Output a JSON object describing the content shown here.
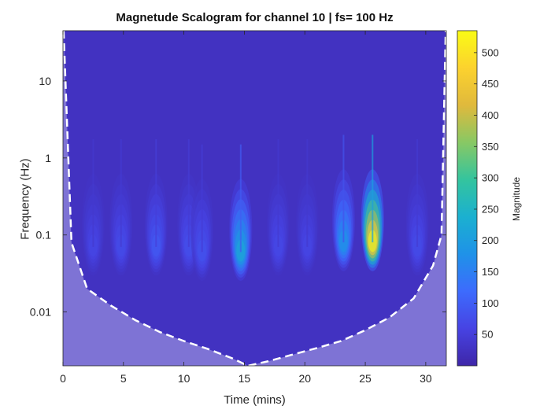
{
  "chart_data": {
    "type": "heatmap",
    "title": "Magnetude Scalogram for channel 10 | fs= 100 Hz",
    "xlabel": "Time (mins)",
    "ylabel": "Frequency (Hz)",
    "colorbar_label": "Magnitude",
    "xlim": [
      0,
      31.7
    ],
    "ylim": [
      0.002,
      45
    ],
    "yscale": "log",
    "x_ticks": [
      0,
      5,
      10,
      15,
      20,
      25,
      30
    ],
    "x_tick_labels": [
      "0",
      "5",
      "10",
      "15",
      "20",
      "25",
      "30"
    ],
    "y_ticks": [
      0.01,
      0.1,
      1,
      10
    ],
    "y_tick_labels": [
      "0.01",
      "0.1",
      "1",
      "10"
    ],
    "colorbar_range": [
      0,
      535
    ],
    "colorbar_ticks": [
      50,
      100,
      150,
      200,
      250,
      300,
      350,
      400,
      450,
      500
    ],
    "colorbar_tick_labels": [
      "50",
      "100",
      "150",
      "200",
      "250",
      "300",
      "350",
      "400",
      "450",
      "500"
    ],
    "colormap": [
      "#3e26a8",
      "#4743e3",
      "#3d6bfd",
      "#1f92e8",
      "#1bb0d0",
      "#34c49e",
      "#88c864",
      "#e0b93c",
      "#fcd22e",
      "#f9fb15"
    ],
    "background_magnitude": 25,
    "cone_of_influence": {
      "style": "white dashed line, shaded below",
      "x": [
        0.05,
        0.7,
        2,
        4,
        6,
        8,
        10,
        12,
        14,
        15.3,
        17,
        19,
        21,
        23,
        25,
        27,
        29,
        30.6,
        31.3,
        31.65
      ],
      "y": [
        45,
        0.08,
        0.02,
        0.012,
        0.0078,
        0.0055,
        0.0042,
        0.0033,
        0.0025,
        0.002,
        0.0023,
        0.0028,
        0.0034,
        0.0042,
        0.0058,
        0.0085,
        0.015,
        0.04,
        0.1,
        45
      ]
    },
    "peaks": [
      {
        "t": 14.7,
        "f_center": 0.06,
        "magnitude": 230
      },
      {
        "t": 23.2,
        "f_center": 0.08,
        "magnitude": 190
      },
      {
        "t": 25.6,
        "f_center": 0.08,
        "magnitude": 535
      },
      {
        "t": 7.7,
        "f_center": 0.07,
        "magnitude": 95
      },
      {
        "t": 10.4,
        "f_center": 0.07,
        "magnitude": 80
      },
      {
        "t": 11.5,
        "f_center": 0.06,
        "magnitude": 85
      },
      {
        "t": 4.8,
        "f_center": 0.07,
        "magnitude": 75
      },
      {
        "t": 2.5,
        "f_center": 0.07,
        "magnitude": 65
      },
      {
        "t": 17.8,
        "f_center": 0.07,
        "magnitude": 70
      },
      {
        "t": 20.2,
        "f_center": 0.07,
        "magnitude": 65
      },
      {
        "t": 29.3,
        "f_center": 0.07,
        "magnitude": 75
      }
    ]
  }
}
